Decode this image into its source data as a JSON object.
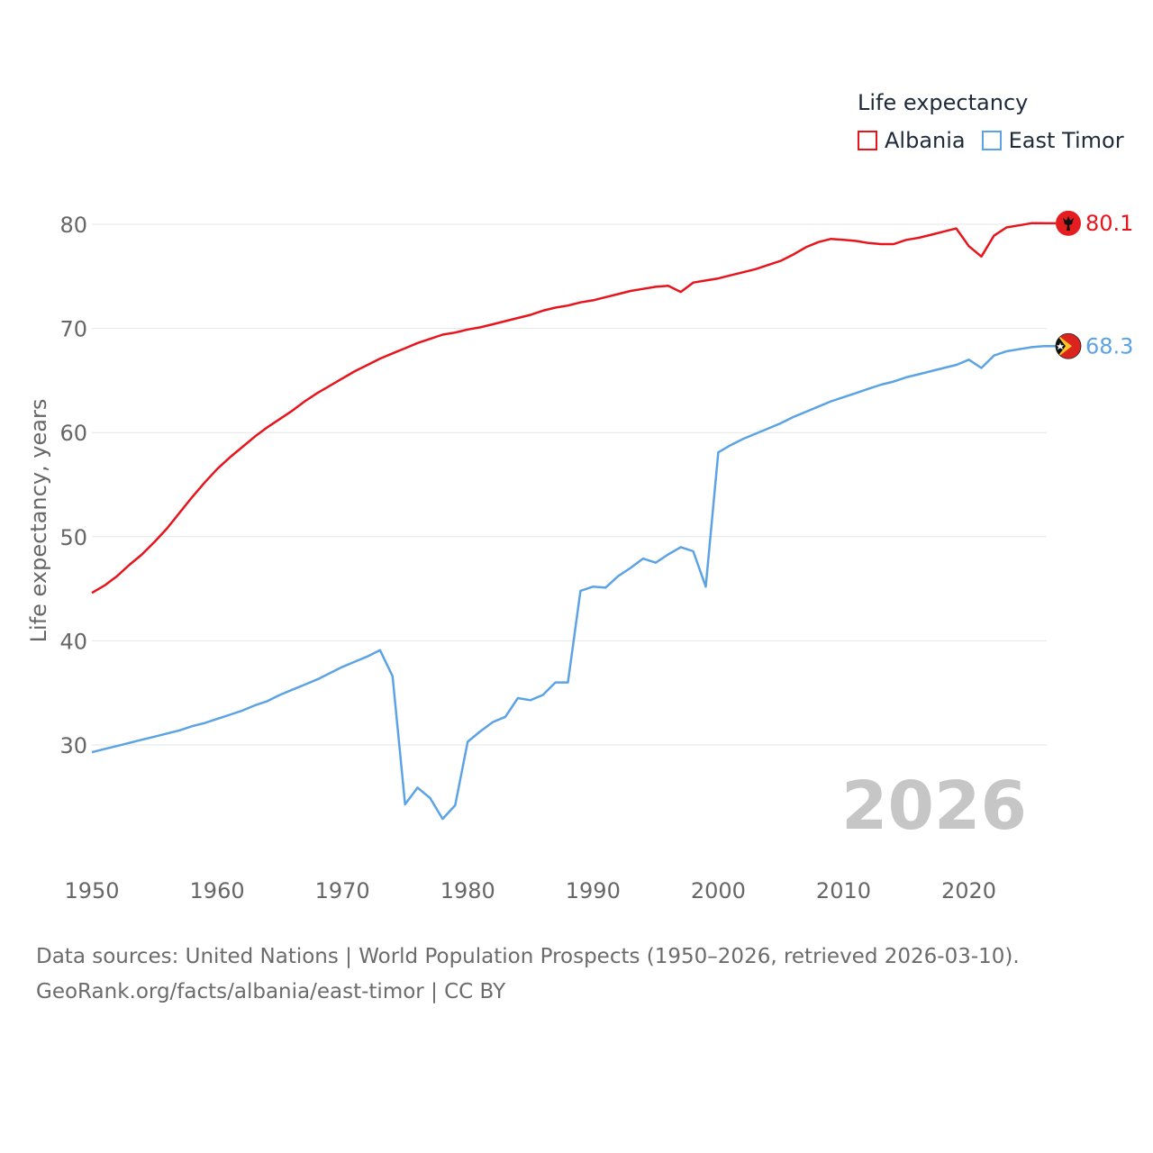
{
  "legend": {
    "title": "Life expectancy"
  },
  "footer": {
    "line1": "Data sources: United Nations | World Population Prospects (1950–2026, retrieved 2026-03-10).",
    "line2": "GeoRank.org/facts/albania/east-timor | CC BY"
  },
  "colors": {
    "albania": "#e8141c",
    "east_timor": "#5ba3e4",
    "grid": "#e6e6e6",
    "tick_text": "#666666",
    "year_watermark": "#c6c6c6"
  },
  "chart_data": {
    "type": "line",
    "title": "Life expectancy",
    "xlabel": "",
    "ylabel": "Life expectancy, years",
    "xlim": [
      1950,
      2026
    ],
    "ylim": [
      20,
      82
    ],
    "x_ticks": [
      1950,
      1960,
      1970,
      1980,
      1990,
      2000,
      2010,
      2020
    ],
    "y_ticks": [
      30,
      40,
      50,
      60,
      70,
      80
    ],
    "grid": true,
    "legend_position": "top-right",
    "current_year": "2026",
    "series": [
      {
        "name": "Albania",
        "color": "#e8141c",
        "end_label": "80.1",
        "flag": "albania-flag",
        "points": [
          [
            1950,
            44.6
          ],
          [
            1951,
            45.3
          ],
          [
            1952,
            46.2
          ],
          [
            1953,
            47.3
          ],
          [
            1954,
            48.3
          ],
          [
            1955,
            49.5
          ],
          [
            1956,
            50.8
          ],
          [
            1957,
            52.3
          ],
          [
            1958,
            53.8
          ],
          [
            1959,
            55.2
          ],
          [
            1960,
            56.5
          ],
          [
            1961,
            57.6
          ],
          [
            1962,
            58.6
          ],
          [
            1963,
            59.6
          ],
          [
            1964,
            60.5
          ],
          [
            1965,
            61.3
          ],
          [
            1966,
            62.1
          ],
          [
            1967,
            63.0
          ],
          [
            1968,
            63.8
          ],
          [
            1969,
            64.5
          ],
          [
            1970,
            65.2
          ],
          [
            1971,
            65.9
          ],
          [
            1972,
            66.5
          ],
          [
            1973,
            67.1
          ],
          [
            1974,
            67.6
          ],
          [
            1975,
            68.1
          ],
          [
            1976,
            68.6
          ],
          [
            1977,
            69.0
          ],
          [
            1978,
            69.4
          ],
          [
            1979,
            69.6
          ],
          [
            1980,
            69.9
          ],
          [
            1981,
            70.1
          ],
          [
            1982,
            70.4
          ],
          [
            1983,
            70.7
          ],
          [
            1984,
            71.0
          ],
          [
            1985,
            71.3
          ],
          [
            1986,
            71.7
          ],
          [
            1987,
            72.0
          ],
          [
            1988,
            72.2
          ],
          [
            1989,
            72.5
          ],
          [
            1990,
            72.7
          ],
          [
            1991,
            73.0
          ],
          [
            1992,
            73.3
          ],
          [
            1993,
            73.6
          ],
          [
            1994,
            73.8
          ],
          [
            1995,
            74.0
          ],
          [
            1996,
            74.1
          ],
          [
            1997,
            73.5
          ],
          [
            1998,
            74.4
          ],
          [
            1999,
            74.6
          ],
          [
            2000,
            74.8
          ],
          [
            2001,
            75.1
          ],
          [
            2002,
            75.4
          ],
          [
            2003,
            75.7
          ],
          [
            2004,
            76.1
          ],
          [
            2005,
            76.5
          ],
          [
            2006,
            77.1
          ],
          [
            2007,
            77.8
          ],
          [
            2008,
            78.3
          ],
          [
            2009,
            78.6
          ],
          [
            2010,
            78.5
          ],
          [
            2011,
            78.4
          ],
          [
            2012,
            78.2
          ],
          [
            2013,
            78.1
          ],
          [
            2014,
            78.1
          ],
          [
            2015,
            78.5
          ],
          [
            2016,
            78.7
          ],
          [
            2017,
            79.0
          ],
          [
            2018,
            79.3
          ],
          [
            2019,
            79.6
          ],
          [
            2020,
            77.9
          ],
          [
            2021,
            76.9
          ],
          [
            2022,
            78.9
          ],
          [
            2023,
            79.7
          ],
          [
            2024,
            79.9
          ],
          [
            2025,
            80.1
          ],
          [
            2026,
            80.1
          ]
        ]
      },
      {
        "name": "East Timor",
        "color": "#5ba3e4",
        "end_label": "68.3",
        "flag": "east-timor-flag",
        "points": [
          [
            1950,
            29.3
          ],
          [
            1951,
            29.6
          ],
          [
            1952,
            29.9
          ],
          [
            1953,
            30.2
          ],
          [
            1954,
            30.5
          ],
          [
            1955,
            30.8
          ],
          [
            1956,
            31.1
          ],
          [
            1957,
            31.4
          ],
          [
            1958,
            31.8
          ],
          [
            1959,
            32.1
          ],
          [
            1960,
            32.5
          ],
          [
            1961,
            32.9
          ],
          [
            1962,
            33.3
          ],
          [
            1963,
            33.8
          ],
          [
            1964,
            34.2
          ],
          [
            1965,
            34.8
          ],
          [
            1966,
            35.3
          ],
          [
            1967,
            35.8
          ],
          [
            1968,
            36.3
          ],
          [
            1969,
            36.9
          ],
          [
            1970,
            37.5
          ],
          [
            1971,
            38.0
          ],
          [
            1972,
            38.5
          ],
          [
            1973,
            39.1
          ],
          [
            1974,
            36.6
          ],
          [
            1975,
            24.3
          ],
          [
            1976,
            25.9
          ],
          [
            1977,
            24.9
          ],
          [
            1978,
            22.9
          ],
          [
            1979,
            24.2
          ],
          [
            1980,
            30.3
          ],
          [
            1981,
            31.3
          ],
          [
            1982,
            32.2
          ],
          [
            1983,
            32.7
          ],
          [
            1984,
            34.5
          ],
          [
            1985,
            34.3
          ],
          [
            1986,
            34.8
          ],
          [
            1987,
            36.0
          ],
          [
            1988,
            36.0
          ],
          [
            1989,
            44.8
          ],
          [
            1990,
            45.2
          ],
          [
            1991,
            45.1
          ],
          [
            1992,
            46.2
          ],
          [
            1993,
            47.0
          ],
          [
            1994,
            47.9
          ],
          [
            1995,
            47.5
          ],
          [
            1996,
            48.3
          ],
          [
            1997,
            49.0
          ],
          [
            1998,
            48.6
          ],
          [
            1999,
            45.2
          ],
          [
            2000,
            58.1
          ],
          [
            2001,
            58.8
          ],
          [
            2002,
            59.4
          ],
          [
            2003,
            59.9
          ],
          [
            2004,
            60.4
          ],
          [
            2005,
            60.9
          ],
          [
            2006,
            61.5
          ],
          [
            2007,
            62.0
          ],
          [
            2008,
            62.5
          ],
          [
            2009,
            63.0
          ],
          [
            2010,
            63.4
          ],
          [
            2011,
            63.8
          ],
          [
            2012,
            64.2
          ],
          [
            2013,
            64.6
          ],
          [
            2014,
            64.9
          ],
          [
            2015,
            65.3
          ],
          [
            2016,
            65.6
          ],
          [
            2017,
            65.9
          ],
          [
            2018,
            66.2
          ],
          [
            2019,
            66.5
          ],
          [
            2020,
            67.0
          ],
          [
            2021,
            66.2
          ],
          [
            2022,
            67.4
          ],
          [
            2023,
            67.8
          ],
          [
            2024,
            68.0
          ],
          [
            2025,
            68.2
          ],
          [
            2026,
            68.3
          ]
        ]
      }
    ]
  }
}
